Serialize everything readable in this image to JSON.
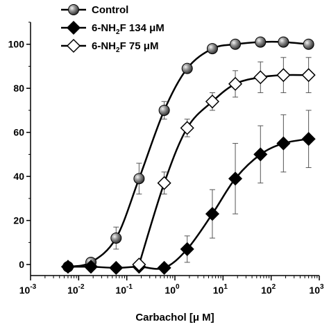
{
  "chart_data": {
    "type": "scatter",
    "x_scale": "log",
    "xlabel": "Carbachol [μ M]",
    "ylabel": "",
    "xlim": [
      0.001,
      1000
    ],
    "ylim": [
      -5,
      110
    ],
    "x_ticks": [
      {
        "base": "10",
        "exp": "-3",
        "value": 0.001
      },
      {
        "base": "10",
        "exp": "-2",
        "value": 0.01
      },
      {
        "base": "10",
        "exp": "-1",
        "value": 0.1
      },
      {
        "base": "10",
        "exp": "0",
        "value": 1
      },
      {
        "base": "10",
        "exp": "1",
        "value": 10
      },
      {
        "base": "10",
        "exp": "2",
        "value": 100
      },
      {
        "base": "10",
        "exp": "3",
        "value": 1000
      }
    ],
    "y_ticks": [
      {
        "label": "0",
        "value": 0
      },
      {
        "label": "20",
        "value": 20
      },
      {
        "label": "40",
        "value": 40
      },
      {
        "label": "60",
        "value": 60
      },
      {
        "label": "80",
        "value": 80
      },
      {
        "label": "100",
        "value": 100
      }
    ],
    "legend_position": "top-left",
    "series": [
      {
        "name": "Control",
        "marker": "sphere",
        "x": [
          0.006,
          0.018,
          0.06,
          0.18,
          0.6,
          1.8,
          6,
          18,
          60,
          180,
          600
        ],
        "y": [
          -1,
          1,
          12,
          39,
          70,
          89,
          98,
          100,
          101,
          101,
          100
        ],
        "err": [
          0,
          0,
          5,
          7,
          4,
          0,
          0,
          0,
          0,
          0,
          0
        ]
      },
      {
        "name_main": "6-NH",
        "name_sub": "2",
        "name_rest": "F 134 μM",
        "marker": "filled-diamond",
        "x": [
          0.006,
          0.018,
          0.06,
          0.18,
          0.6,
          1.8,
          6,
          18,
          60,
          180,
          600
        ],
        "y": [
          -1,
          -1,
          -1.5,
          -1,
          -1.5,
          7,
          23,
          39,
          50,
          55,
          57
        ],
        "err": [
          0,
          0,
          0,
          0,
          0,
          6,
          11,
          16,
          13,
          13,
          13
        ]
      },
      {
        "name_main": "6-NH",
        "name_sub": "2",
        "name_rest": "F 75 μM",
        "marker": "open-diamond",
        "x": [
          0.18,
          0.6,
          1.8,
          6,
          18,
          60,
          180,
          600
        ],
        "y": [
          0,
          37,
          62,
          74,
          82,
          85,
          86,
          86
        ],
        "err": [
          0,
          5,
          4,
          4,
          6,
          7,
          8,
          8
        ]
      }
    ]
  }
}
